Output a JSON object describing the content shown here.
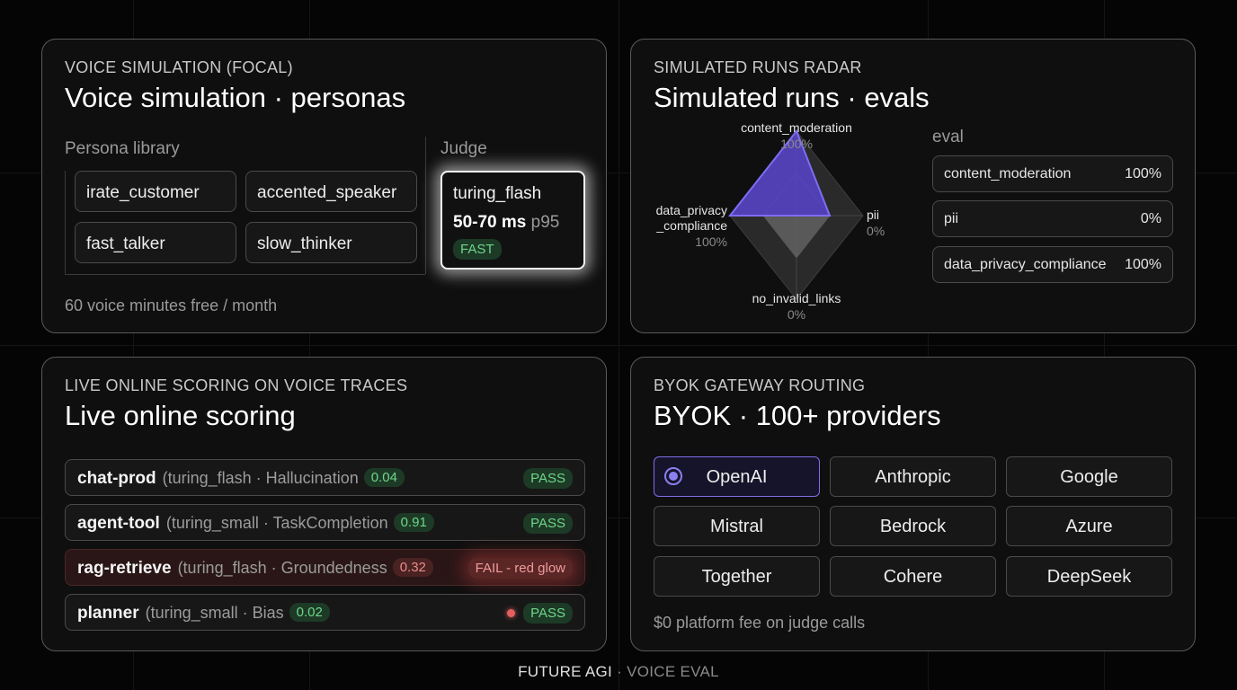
{
  "voice_sim": {
    "kicker": "VOICE SIMULATION (FOCAL)",
    "title": "Voice simulation · personas",
    "persona_label": "Persona library",
    "personas": [
      "irate_customer",
      "accented_speaker",
      "fast_talker",
      "slow_thinker"
    ],
    "judge_label": "Judge",
    "judge": {
      "name": "turing_flash",
      "latency": "50-70 ms",
      "percentile": "p95",
      "badge": "FAST"
    },
    "footer": "60 voice minutes free / month"
  },
  "radar_panel": {
    "kicker": "SIMULATED RUNS RADAR",
    "title": "Simulated runs · evals",
    "axes": [
      {
        "name": "content_moderation",
        "value": "100%"
      },
      {
        "name": "pii",
        "value": "0%"
      },
      {
        "name": "no_invalid_links",
        "value": "0%"
      },
      {
        "name": "data_privacy",
        "name2": "_compliance",
        "value": "100%"
      }
    ],
    "eval_label": "eval",
    "evals": [
      {
        "name": "content_moderation",
        "value": "100%"
      },
      {
        "name": "pii",
        "value": "0%"
      },
      {
        "name": "data_privacy_compliance",
        "value": "100%"
      }
    ],
    "accent_color": "#6b55e0"
  },
  "live_scoring": {
    "kicker": "LIVE ONLINE SCORING ON VOICE TRACES",
    "title": "Live online scoring",
    "rows": [
      {
        "name": "chat-prod",
        "detail": "(turing_flash · Hallucination",
        "score": "0.04",
        "status": "PASS"
      },
      {
        "name": "agent-tool",
        "detail": "(turing_small · TaskCompletion",
        "score": "0.91",
        "status": "PASS"
      },
      {
        "name": "rag-retrieve",
        "detail": "(turing_flash · Groundedness",
        "score": "0.32",
        "status": "FAIL - red glow"
      },
      {
        "name": "planner",
        "detail": "(turing_small · Bias",
        "score": "0.02",
        "status": "PASS"
      }
    ]
  },
  "byok": {
    "kicker": "BYOK GATEWAY ROUTING",
    "title": "BYOK · 100+ providers",
    "providers": [
      "OpenAI",
      "Anthropic",
      "Google",
      "Mistral",
      "Bedrock",
      "Azure",
      "Together",
      "Cohere",
      "DeepSeek"
    ],
    "selected": "OpenAI",
    "footer": "$0 platform fee on judge calls"
  },
  "footer": {
    "brand": "FUTURE AGI",
    "sep": " · ",
    "product": "VOICE EVAL"
  }
}
